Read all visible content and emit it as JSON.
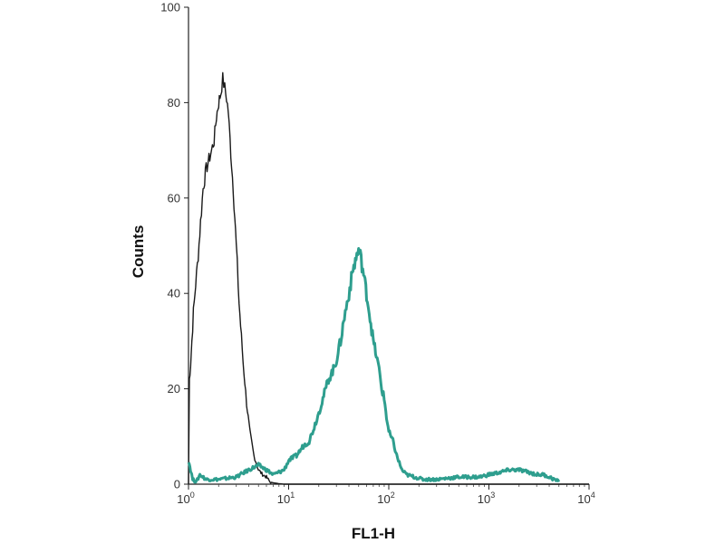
{
  "chart_data": {
    "type": "line",
    "title": "",
    "xlabel": "FL1-H",
    "ylabel": "Counts",
    "x_scale": "log",
    "xlim": [
      1,
      10000
    ],
    "ylim": [
      0,
      100
    ],
    "grid": false,
    "legend": "none",
    "x_ticks": [
      {
        "value": 1,
        "base": "10",
        "exp": "0"
      },
      {
        "value": 10,
        "base": "10",
        "exp": "1"
      },
      {
        "value": 100,
        "base": "10",
        "exp": "2"
      },
      {
        "value": 1000,
        "base": "10",
        "exp": "3"
      },
      {
        "value": 10000,
        "base": "10",
        "exp": "4"
      }
    ],
    "y_ticks": [
      "0",
      "20",
      "40",
      "60",
      "80",
      "100"
    ],
    "series": [
      {
        "color": "#1a1a1a",
        "x": [
          1.0,
          1.02,
          1.05,
          1.08,
          1.12,
          1.18,
          1.25,
          1.32,
          1.4,
          1.5,
          1.6,
          1.7,
          1.8,
          1.9,
          2.0,
          2.1,
          2.2,
          2.3,
          2.4,
          2.5,
          2.6,
          2.8,
          3.0,
          3.2,
          3.5,
          3.8,
          4.1,
          4.5,
          5.0,
          5.5,
          6.0,
          6.5,
          7.0,
          7.5,
          8.0,
          9.0,
          10,
          15,
          30,
          100,
          1000,
          10000
        ],
        "y": [
          0,
          22,
          25,
          30,
          36,
          42,
          48,
          55,
          62,
          66,
          68,
          70,
          72,
          77,
          80,
          82,
          85,
          83,
          81,
          78,
          72,
          62,
          50,
          38,
          26,
          17,
          11,
          6,
          3,
          2,
          1.5,
          0.5,
          0.3,
          0.2,
          0.1,
          0,
          0,
          0,
          0,
          0,
          0,
          0
        ]
      },
      {
        "color": "#2e9e8e",
        "x": [
          1.0,
          1.05,
          1.1,
          1.2,
          1.3,
          1.5,
          2.0,
          3.0,
          4.0,
          5.0,
          6.0,
          7.0,
          8.0,
          9.0,
          10,
          12,
          14,
          16,
          18,
          20,
          22,
          25,
          28,
          30,
          33,
          36,
          40,
          44,
          48,
          50,
          52,
          56,
          60,
          65,
          70,
          75,
          80,
          85,
          90,
          95,
          100,
          110,
          120,
          135,
          150,
          180,
          220,
          300,
          500,
          800,
          1000,
          1300,
          1600,
          2000,
          2500,
          3000,
          3500,
          4000,
          4500,
          5000
        ],
        "y": [
          5,
          3,
          1,
          0.5,
          2,
          1,
          1,
          1.5,
          3,
          4,
          3,
          2,
          2.5,
          3,
          5,
          6,
          8,
          9,
          12,
          15,
          18,
          22,
          24,
          26,
          30,
          35,
          40,
          45,
          48,
          49,
          48,
          44,
          40,
          35,
          30,
          27,
          24,
          20,
          18,
          14,
          11,
          9,
          6,
          3,
          2,
          1.5,
          1,
          1,
          1.5,
          1.5,
          2,
          2.5,
          3,
          3,
          2.5,
          2,
          2,
          1.5,
          1,
          0.5
        ]
      }
    ]
  }
}
